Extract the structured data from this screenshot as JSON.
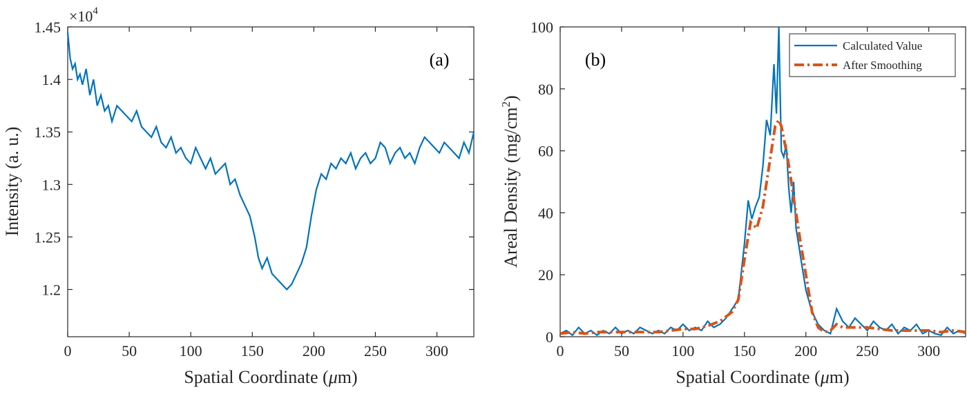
{
  "chart_data": [
    {
      "type": "line",
      "panel_label": "(a)",
      "xlabel": "Spatial Coordinate (μm)",
      "xlabel_main": "Spatial Coordinate (",
      "xlabel_unit": "μ",
      "xlabel_end": "m)",
      "ylabel": "Intensity (a. u.)",
      "exponent_label": "×10",
      "exponent_power": "4",
      "xlim": [
        0,
        330
      ],
      "ylim": [
        11550,
        14500
      ],
      "xticks": [
        0,
        50,
        100,
        150,
        200,
        250,
        300
      ],
      "yticks": [
        12000,
        12500,
        13000,
        13500,
        14000,
        14500
      ],
      "ytick_labels": [
        "1.2",
        "1.25",
        "1.3",
        "1.35",
        "1.4",
        "1.45"
      ],
      "grid": false,
      "series": [
        {
          "color": "#0072BD",
          "x": [
            0,
            2,
            4,
            6,
            8,
            10,
            12,
            15,
            18,
            21,
            24,
            27,
            30,
            33,
            36,
            40,
            44,
            48,
            52,
            56,
            60,
            64,
            68,
            72,
            76,
            80,
            84,
            88,
            92,
            96,
            100,
            104,
            108,
            112,
            116,
            120,
            124,
            128,
            132,
            136,
            140,
            144,
            148,
            152,
            155,
            158,
            162,
            166,
            170,
            174,
            178,
            182,
            186,
            190,
            194,
            198,
            202,
            206,
            210,
            214,
            218,
            222,
            226,
            230,
            234,
            238,
            242,
            246,
            250,
            254,
            258,
            262,
            266,
            270,
            274,
            278,
            282,
            286,
            290,
            294,
            298,
            302,
            306,
            310,
            314,
            318,
            322,
            326,
            330
          ],
          "values": [
            14450,
            14200,
            14100,
            14150,
            14000,
            14050,
            13950,
            14100,
            13850,
            14000,
            13750,
            13850,
            13700,
            13750,
            13600,
            13750,
            13700,
            13650,
            13600,
            13700,
            13550,
            13500,
            13450,
            13550,
            13400,
            13350,
            13450,
            13300,
            13350,
            13250,
            13200,
            13350,
            13250,
            13150,
            13250,
            13100,
            13150,
            13200,
            13000,
            13050,
            12900,
            12800,
            12700,
            12500,
            12300,
            12200,
            12300,
            12150,
            12100,
            12050,
            12000,
            12050,
            12150,
            12250,
            12400,
            12700,
            12950,
            13100,
            13050,
            13200,
            13150,
            13250,
            13200,
            13300,
            13150,
            13250,
            13300,
            13200,
            13250,
            13400,
            13350,
            13200,
            13300,
            13350,
            13250,
            13300,
            13200,
            13350,
            13450,
            13400,
            13350,
            13300,
            13400,
            13350,
            13300,
            13250,
            13400,
            13300,
            13500
          ]
        }
      ]
    },
    {
      "type": "line",
      "panel_label": "(b)",
      "xlabel": "Spatial Coordinate (μm)",
      "xlabel_main": "Spatial Coordinate (",
      "xlabel_unit": "μ",
      "xlabel_end": "m)",
      "ylabel": "Areal Density (mg/cm²)",
      "ylabel_main": "Areal Density (mg/cm",
      "ylabel_sup": "2",
      "ylabel_end": ")",
      "xlim": [
        0,
        330
      ],
      "ylim": [
        0,
        100
      ],
      "xticks": [
        0,
        50,
        100,
        150,
        200,
        250,
        300
      ],
      "yticks": [
        0,
        20,
        40,
        60,
        80,
        100
      ],
      "grid": false,
      "legend_position": "top-right",
      "series": [
        {
          "name": "Calculated Value",
          "color": "#0072BD",
          "style": "solid",
          "x": [
            0,
            5,
            10,
            15,
            20,
            25,
            30,
            35,
            40,
            45,
            50,
            55,
            60,
            65,
            70,
            75,
            80,
            85,
            90,
            95,
            100,
            105,
            110,
            115,
            120,
            125,
            130,
            135,
            140,
            145,
            150,
            153,
            156,
            159,
            162,
            165,
            168,
            171,
            174,
            176,
            178,
            180,
            182,
            184,
            186,
            188,
            190,
            192,
            194,
            196,
            200,
            205,
            210,
            215,
            220,
            225,
            230,
            235,
            240,
            245,
            250,
            255,
            260,
            265,
            270,
            275,
            280,
            285,
            290,
            295,
            300,
            305,
            310,
            315,
            320,
            325,
            330
          ],
          "values": [
            1,
            2,
            0.5,
            3,
            1,
            2,
            0.5,
            2,
            1,
            3,
            1,
            2,
            1,
            3,
            2,
            1,
            2,
            1,
            3,
            2,
            4,
            2,
            3,
            2,
            5,
            3,
            4,
            6,
            9,
            12,
            30,
            44,
            38,
            42,
            45,
            55,
            70,
            65,
            88,
            72,
            100,
            60,
            58,
            62,
            48,
            40,
            50,
            35,
            30,
            25,
            15,
            8,
            4,
            2,
            1,
            9,
            5,
            3,
            6,
            4,
            2,
            5,
            3,
            2,
            4,
            1,
            3,
            2,
            4,
            1,
            2,
            1,
            0.5,
            3,
            1,
            2,
            1
          ]
        },
        {
          "name": "After Smoothing",
          "color": "#D95319",
          "style": "dashdot",
          "x": [
            0,
            10,
            20,
            30,
            40,
            50,
            60,
            70,
            80,
            90,
            100,
            110,
            120,
            130,
            140,
            145,
            150,
            155,
            160,
            165,
            170,
            175,
            178,
            180,
            185,
            190,
            195,
            200,
            205,
            210,
            215,
            220,
            225,
            230,
            240,
            250,
            260,
            270,
            280,
            290,
            300,
            310,
            320,
            330
          ],
          "values": [
            1,
            1.5,
            1,
            1.5,
            1.5,
            1.5,
            1.5,
            1.5,
            1.5,
            2,
            2.5,
            2.5,
            3.5,
            5,
            8,
            12,
            25,
            37,
            35,
            42,
            55,
            68,
            70,
            68,
            58,
            45,
            32,
            20,
            8,
            3,
            1.5,
            2,
            4,
            3,
            3,
            3,
            2.5,
            2,
            2,
            2,
            2,
            1.5,
            2,
            1.5
          ]
        }
      ]
    }
  ]
}
